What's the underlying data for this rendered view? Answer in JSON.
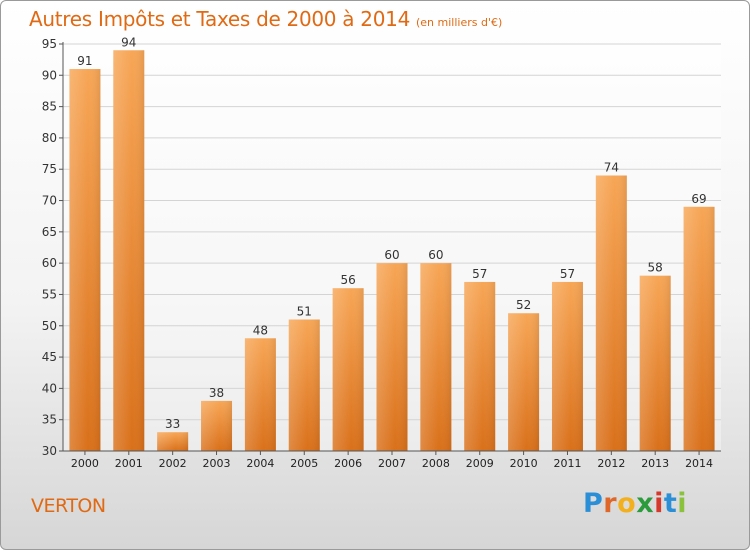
{
  "chart_data": {
    "type": "bar",
    "title": "Autres Impôts et Taxes de 2000 à 2014",
    "subtitle": "(en milliers d'€)",
    "categories": [
      "2000",
      "2001",
      "2002",
      "2003",
      "2004",
      "2005",
      "2006",
      "2007",
      "2008",
      "2009",
      "2010",
      "2011",
      "2012",
      "2013",
      "2014"
    ],
    "values": [
      91,
      94,
      33,
      38,
      48,
      51,
      56,
      60,
      60,
      57,
      52,
      57,
      74,
      58,
      69
    ],
    "ylim": [
      30,
      95
    ],
    "yticks": [
      30,
      35,
      40,
      45,
      50,
      55,
      60,
      65,
      70,
      75,
      80,
      85,
      90,
      95
    ],
    "grid": true,
    "bar_color": "#e8832a"
  },
  "footer": {
    "city": "VERTON",
    "logo_letters": [
      "P",
      "r",
      "o",
      "x",
      "i",
      "t",
      "i"
    ],
    "logo_colors": [
      "#2a8fd6",
      "#e0672a",
      "#f2b01e",
      "#2c9b3c",
      "#d6382c",
      "#2a8fd6",
      "#8ac23c"
    ]
  }
}
